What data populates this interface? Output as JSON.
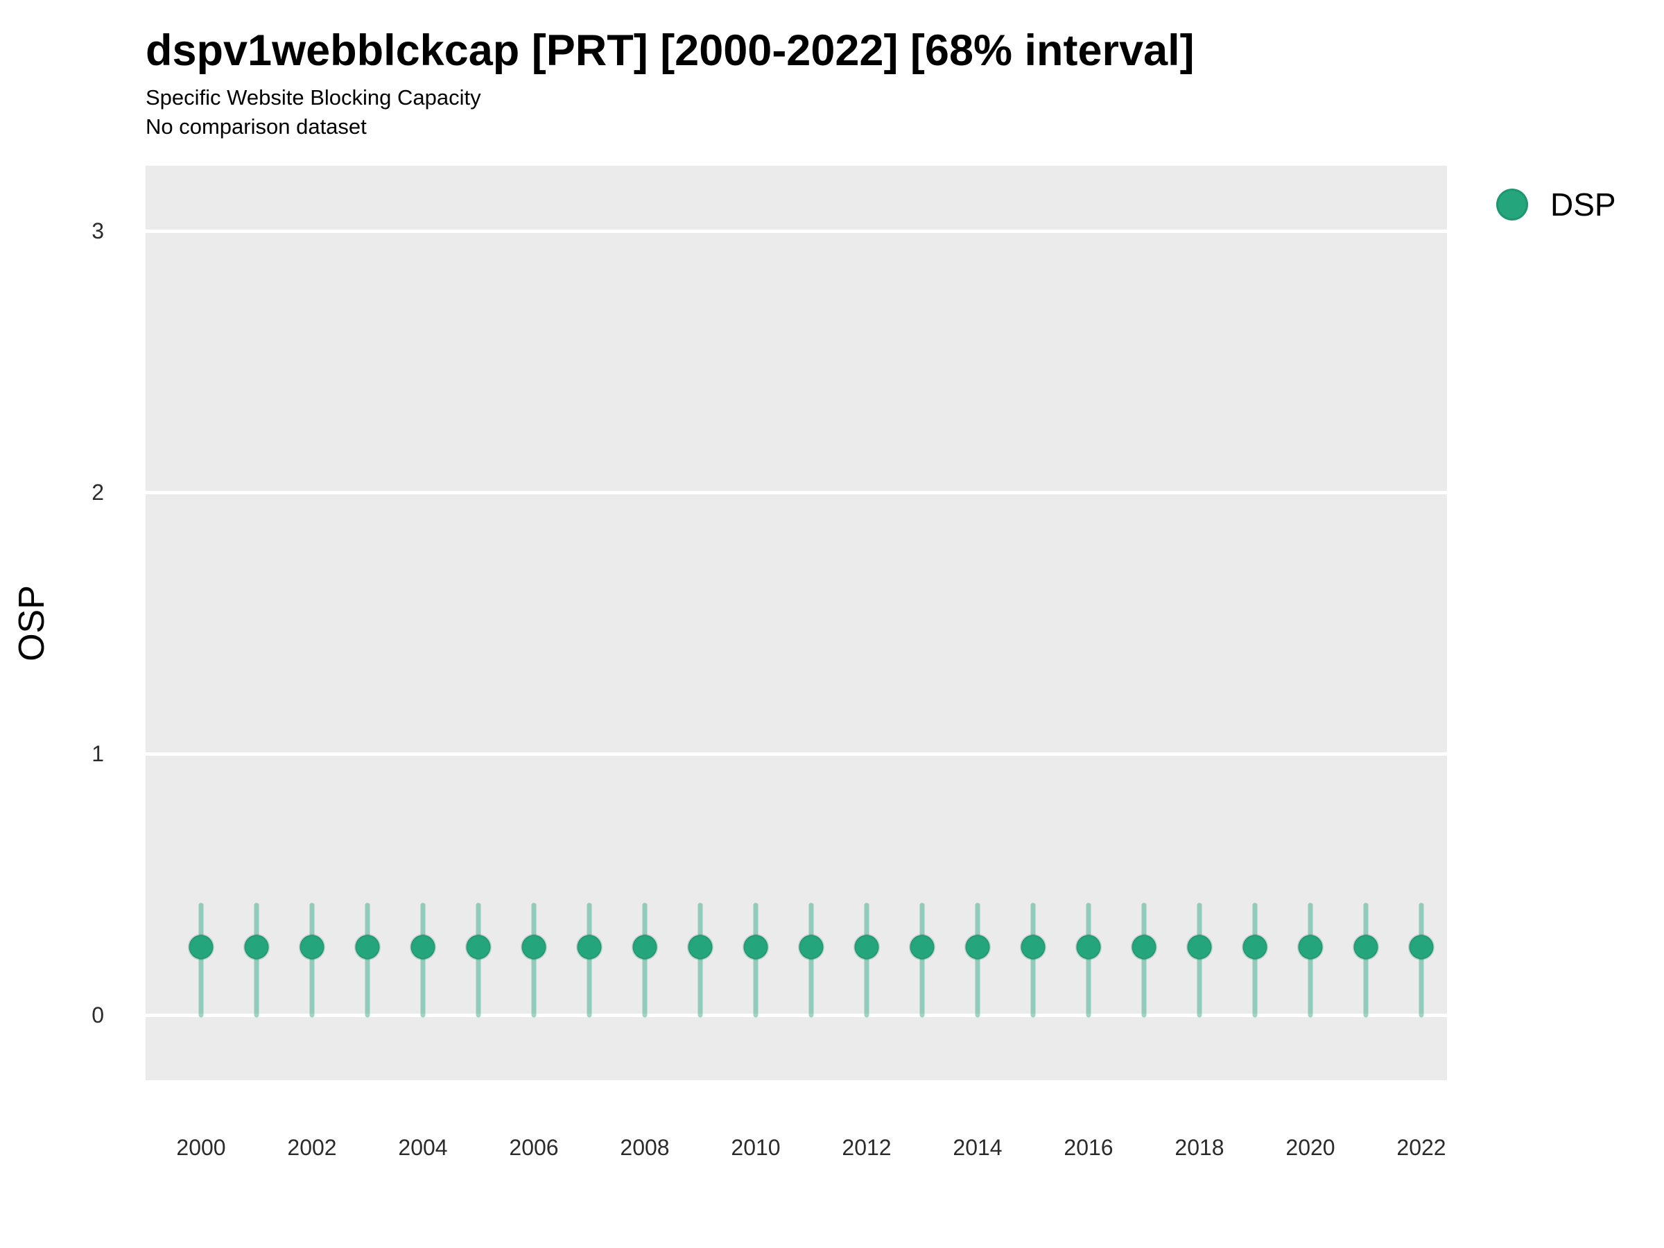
{
  "header": {
    "title": "dspv1webblckcap [PRT] [2000-2022] [68% interval]",
    "subtitle": "Specific Website Blocking Capacity",
    "note": "No comparison dataset"
  },
  "colors": {
    "point": "#25A57C",
    "point_edge": "rgba(0,90,60,0.18)",
    "interval": "rgba(38,165,124,0.45)",
    "panel_bg": "#EBEBEB",
    "gridline": "#FFFFFF",
    "axis_text": "#2b2b2b"
  },
  "legend": {
    "items": [
      {
        "label": "DSP",
        "color": "#25A57C"
      }
    ],
    "position": "right-top"
  },
  "chart_data": {
    "type": "pointrange",
    "title": "dspv1webblckcap [PRT] [2000-2022] [68% interval]",
    "subtitle": "Specific Website Blocking Capacity",
    "note": "No comparison dataset",
    "xlabel": "",
    "ylabel": "OSP",
    "interval_level": "68%",
    "grid": "major-horizontal-only",
    "legend_position": "right-top",
    "x": [
      2000,
      2001,
      2002,
      2003,
      2004,
      2005,
      2006,
      2007,
      2008,
      2009,
      2010,
      2011,
      2012,
      2013,
      2014,
      2015,
      2016,
      2017,
      2018,
      2019,
      2020,
      2021,
      2022
    ],
    "series": [
      {
        "name": "DSP",
        "estimate": [
          0.26,
          0.26,
          0.26,
          0.26,
          0.26,
          0.26,
          0.26,
          0.26,
          0.26,
          0.26,
          0.26,
          0.26,
          0.26,
          0.26,
          0.26,
          0.26,
          0.26,
          0.26,
          0.26,
          0.26,
          0.26,
          0.26,
          0.26
        ],
        "lower": [
          0.0,
          0.0,
          0.0,
          0.0,
          0.0,
          0.0,
          0.0,
          0.0,
          0.0,
          0.0,
          0.0,
          0.0,
          0.0,
          0.0,
          0.0,
          0.0,
          0.0,
          0.0,
          0.0,
          0.0,
          0.0,
          0.0,
          0.0
        ],
        "upper": [
          0.42,
          0.42,
          0.42,
          0.42,
          0.42,
          0.42,
          0.42,
          0.42,
          0.42,
          0.42,
          0.42,
          0.42,
          0.42,
          0.42,
          0.42,
          0.42,
          0.42,
          0.42,
          0.42,
          0.42,
          0.42,
          0.42,
          0.42
        ]
      }
    ],
    "x_tick_labels": [
      "2000",
      "2002",
      "2004",
      "2006",
      "2008",
      "2010",
      "2012",
      "2014",
      "2016",
      "2018",
      "2020",
      "2022"
    ],
    "y_ticks": [
      0,
      1,
      2,
      3
    ],
    "ylim": [
      -0.25,
      3.25
    ]
  }
}
